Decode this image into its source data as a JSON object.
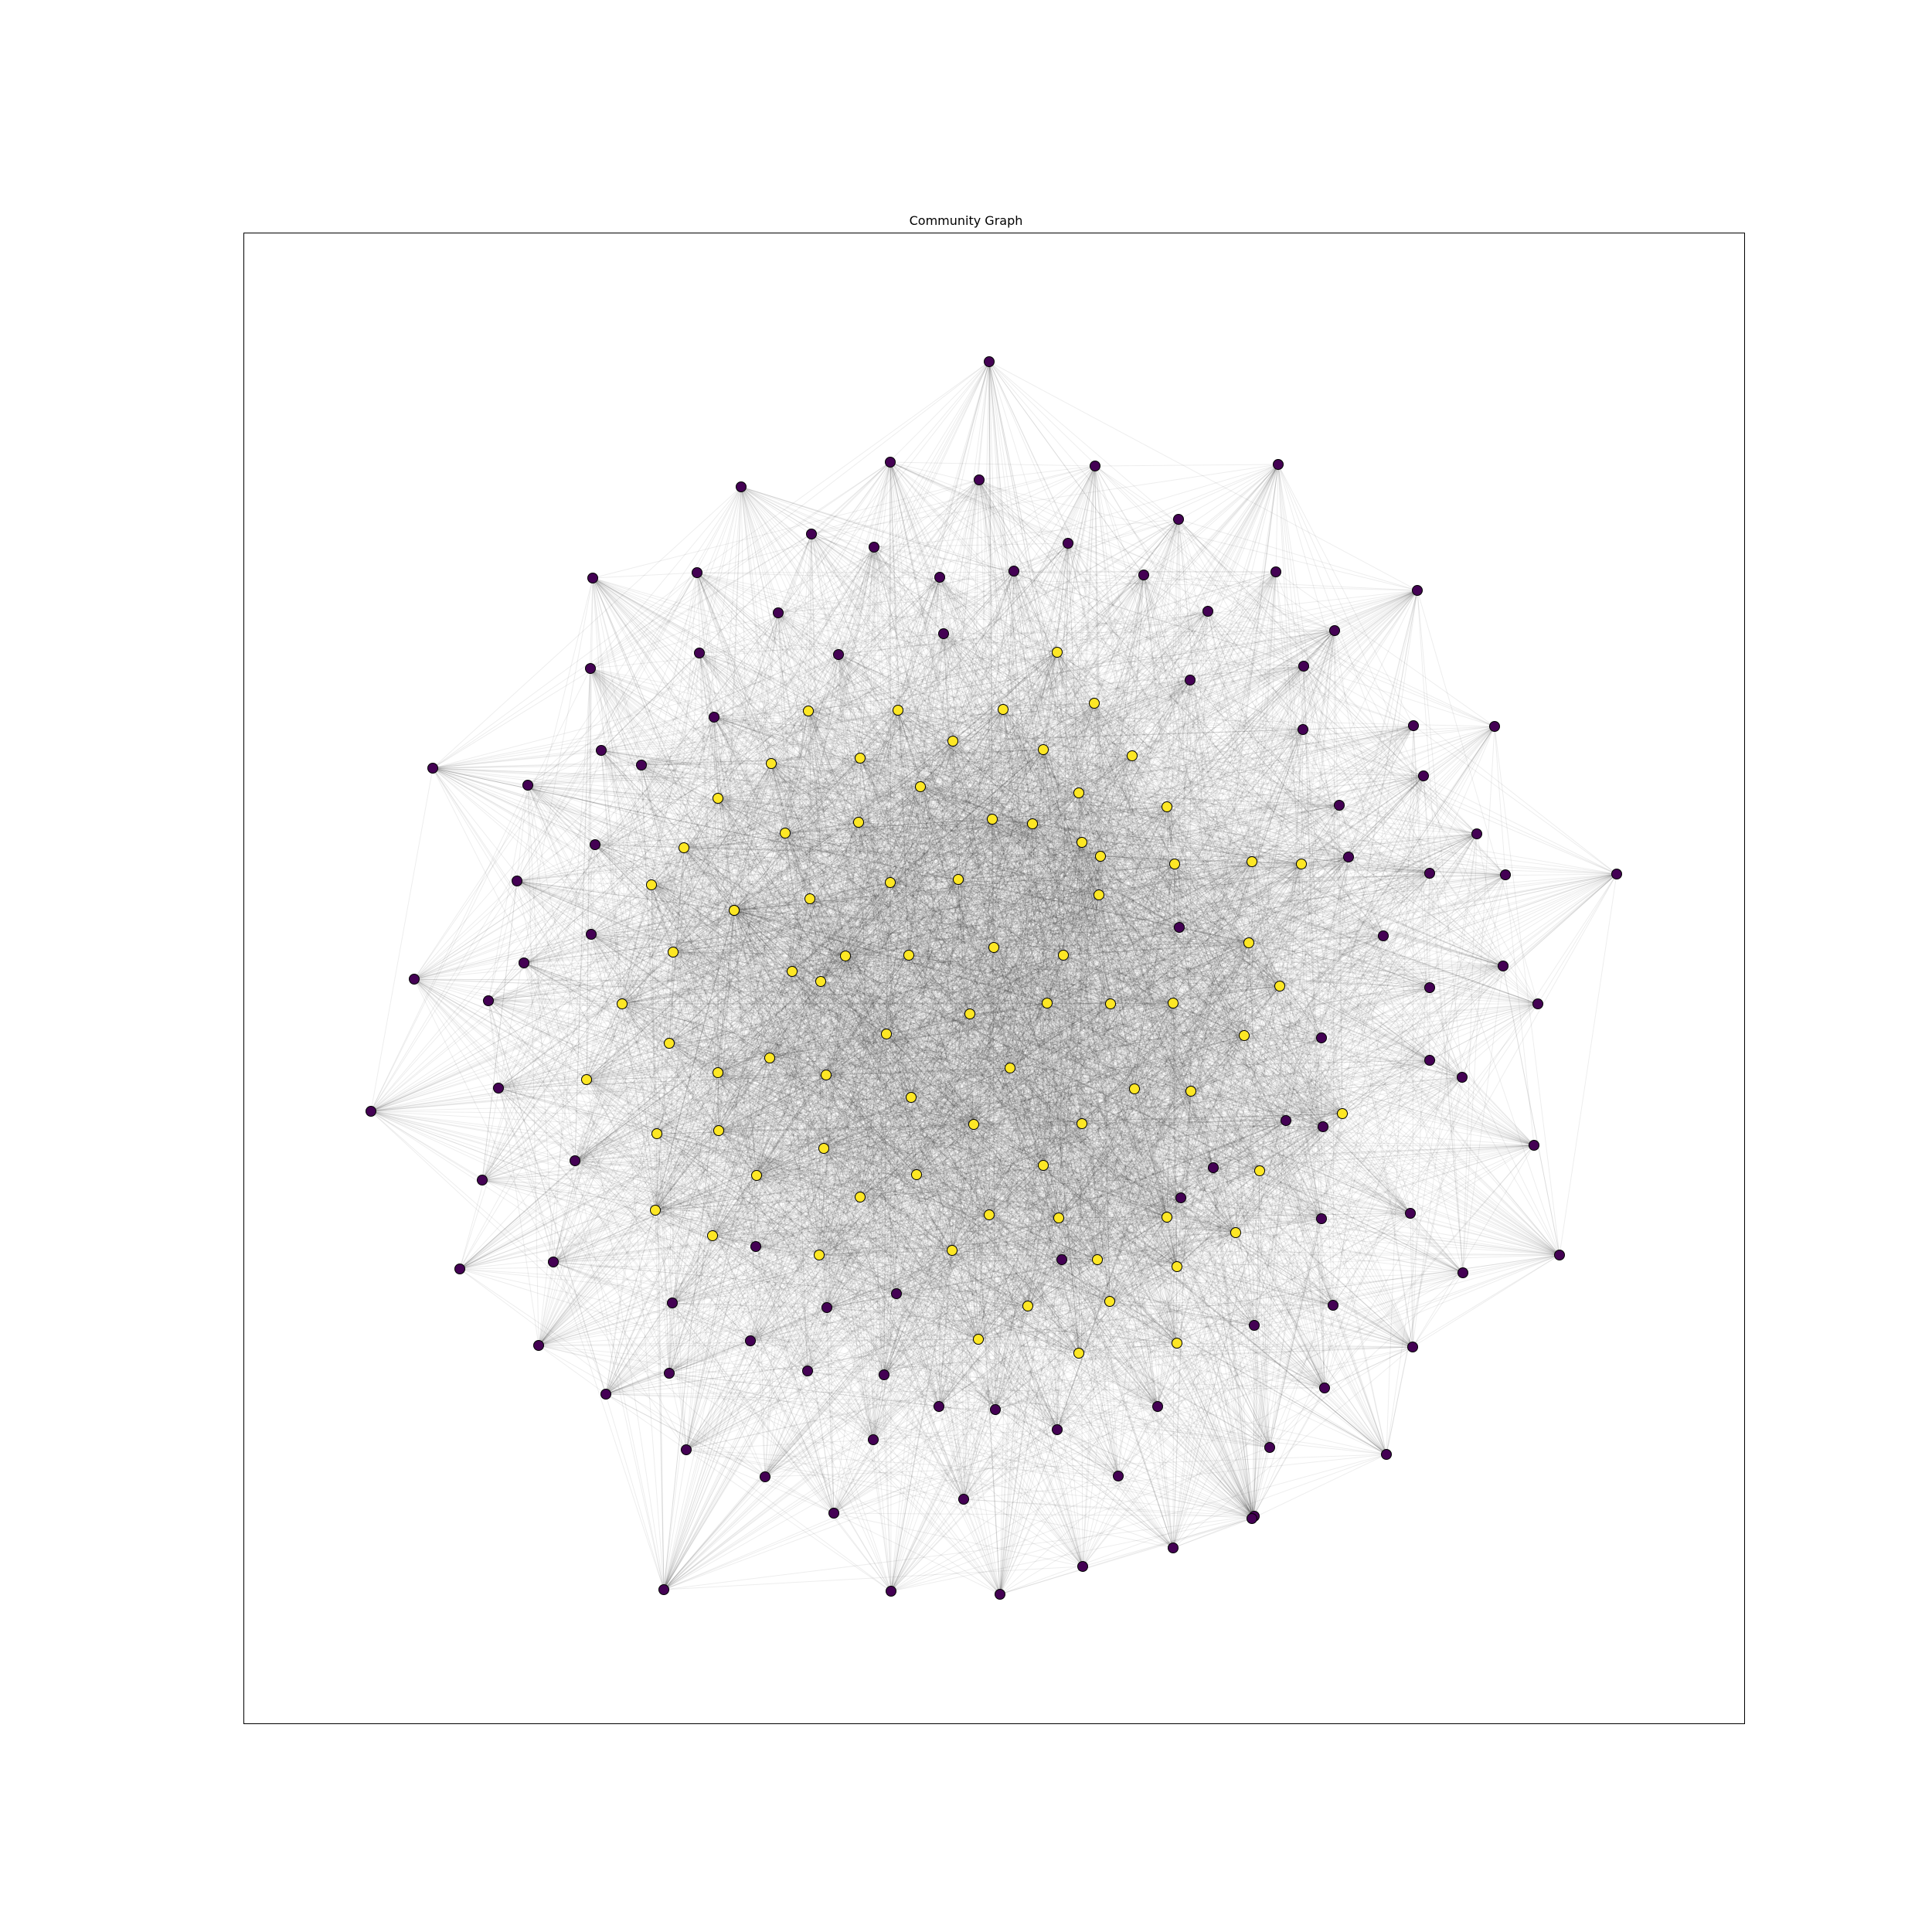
{
  "title": "Community Graph",
  "colors": {
    "community_0": "#440154",
    "community_1": "#fde725",
    "edge": "#000000",
    "node_outline": "#000000"
  },
  "legend": {
    "community_0_label": "",
    "community_1_label": ""
  }
}
